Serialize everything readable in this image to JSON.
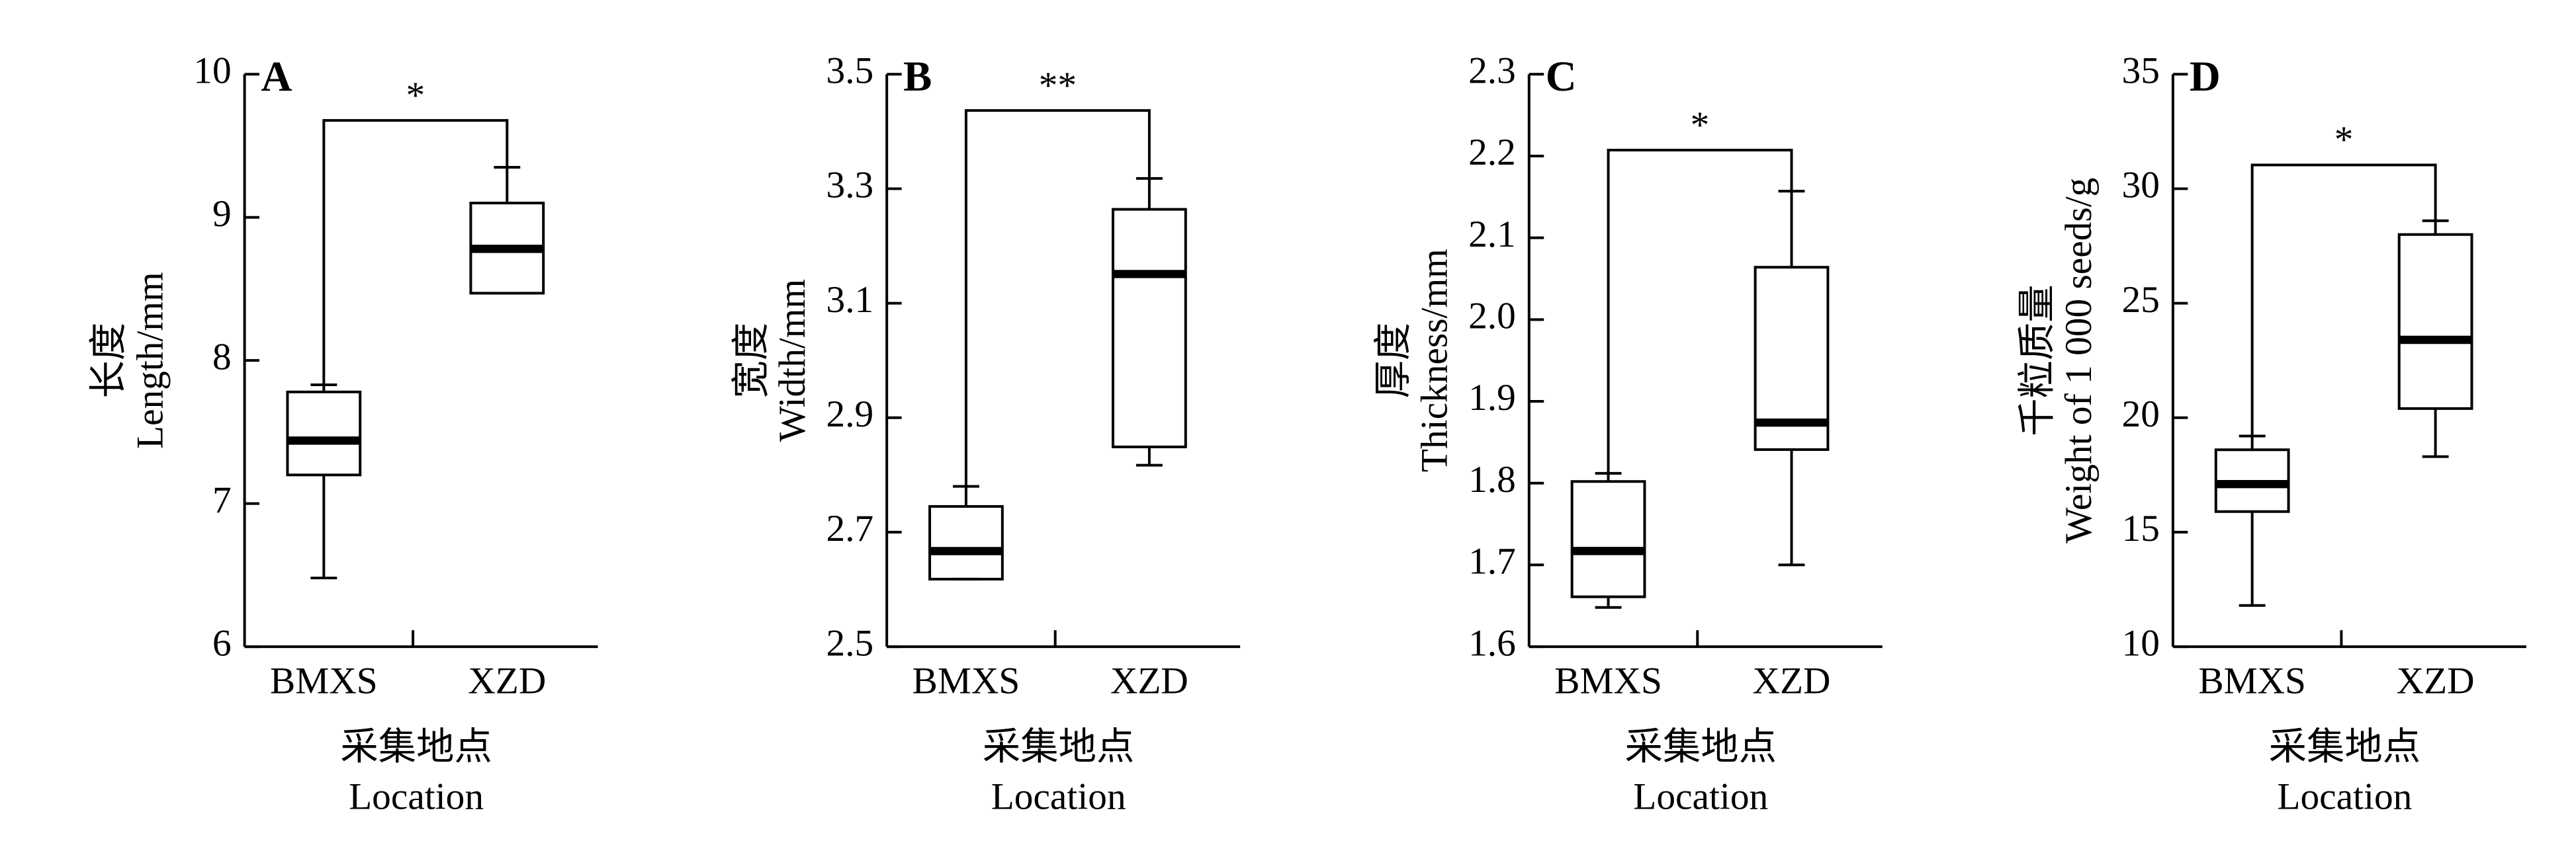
{
  "chart_data": [
    {
      "type": "box",
      "panel": "A",
      "ylabel": [
        "长度",
        "Length/mm"
      ],
      "xlabel": [
        "采集地点",
        "Location"
      ],
      "categories": [
        "BMXS",
        "XZD"
      ],
      "boxes": [
        {
          "min": 6.48,
          "q1": 7.2,
          "median": 7.44,
          "q3": 7.78,
          "max": 7.83
        },
        {
          "min": 8.47,
          "q1": 8.47,
          "median": 8.78,
          "q3": 9.1,
          "max": 9.35
        }
      ],
      "annotation": "*",
      "ylim": [
        6,
        10
      ],
      "yticks": [
        6,
        7,
        8,
        9,
        10
      ]
    },
    {
      "type": "box",
      "panel": "B",
      "ylabel": [
        "宽度",
        "Width/mm"
      ],
      "xlabel": [
        "采集地点",
        "Location"
      ],
      "categories": [
        "BMXS",
        "XZD"
      ],
      "boxes": [
        {
          "min": 2.618,
          "q1": 2.618,
          "median": 2.667,
          "q3": 2.745,
          "max": 2.78
        },
        {
          "min": 2.817,
          "q1": 2.849,
          "median": 3.151,
          "q3": 3.264,
          "max": 3.318
        }
      ],
      "annotation": "**",
      "ylim": [
        2.5,
        3.5
      ],
      "yticks": [
        2.5,
        2.7,
        2.9,
        3.1,
        3.3,
        3.5
      ]
    },
    {
      "type": "box",
      "panel": "C",
      "ylabel": [
        "厚度",
        "Thickness/mm"
      ],
      "xlabel": [
        "采集地点",
        "Location"
      ],
      "categories": [
        "BMXS",
        "XZD"
      ],
      "boxes": [
        {
          "min": 1.648,
          "q1": 1.661,
          "median": 1.717,
          "q3": 1.802,
          "max": 1.812
        },
        {
          "min": 1.7,
          "q1": 1.841,
          "median": 1.874,
          "q3": 2.064,
          "max": 2.157
        }
      ],
      "annotation": "*",
      "ylim": [
        1.6,
        2.3
      ],
      "yticks": [
        1.6,
        1.7,
        1.8,
        1.9,
        {
          "value": 2,
          "label": "2.0"
        },
        2.1,
        2.2,
        2.3
      ]
    },
    {
      "type": "box",
      "panel": "D",
      "ylabel": [
        "千粒质量",
        "Weight of 1 000 seeds/g"
      ],
      "xlabel": [
        "采集地点",
        "Location"
      ],
      "categories": [
        "BMXS",
        "XZD"
      ],
      "boxes": [
        {
          "min": 11.8,
          "q1": 15.9,
          "median": 17.1,
          "q3": 18.6,
          "max": 19.2
        },
        {
          "min": 18.3,
          "q1": 20.4,
          "median": 23.4,
          "q3": 28.0,
          "max": 28.6
        }
      ],
      "annotation": "*",
      "ylim": [
        10,
        35
      ],
      "yticks": [
        10,
        15,
        20,
        25,
        30,
        35
      ]
    }
  ]
}
